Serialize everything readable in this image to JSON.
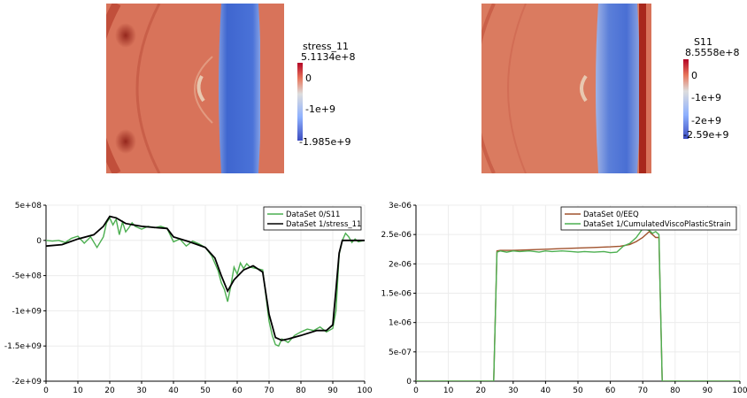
{
  "colors": {
    "field_base": "#d8735a",
    "field_light": "#e3937a",
    "field_dark": "#a8281c",
    "wave_blue": "#4a72d8",
    "wave_blue_light": "#7b98e0",
    "series_green": "#4caf50",
    "series_black": "#000000",
    "series_red": "#a0522d",
    "grid": "#e6e6e6"
  },
  "field_left": {
    "colorbar": {
      "title": "stress_11",
      "max_label": "5.1134e+8",
      "tick_labels": [
        "0",
        "-1e+9"
      ],
      "min_label": "-1.985e+9",
      "range": [
        -1985000000,
        511340000
      ],
      "ticks": [
        0,
        -1000000000
      ]
    }
  },
  "field_right": {
    "colorbar": {
      "title": "S11",
      "max_label": "8.5558e+8",
      "tick_labels": [
        "0",
        "-1e+9",
        "-2e+9"
      ],
      "min_label": "-2.59e+9",
      "range": [
        -2590000000,
        855580000
      ],
      "ticks": [
        0,
        -1000000000,
        -2000000000
      ]
    }
  },
  "chart_data": [
    {
      "type": "line",
      "xlim": [
        0,
        100
      ],
      "ylim": [
        -2000000000,
        500000000
      ],
      "grid": true,
      "legend_placement": "top-right",
      "x_ticks": [
        0,
        10,
        20,
        30,
        40,
        50,
        60,
        70,
        80,
        90,
        100
      ],
      "x_tick_labels": [
        "0",
        "10",
        "20",
        "30",
        "40",
        "50",
        "60",
        "70",
        "80",
        "90",
        "100"
      ],
      "y_ticks": [
        500000000,
        0,
        -500000000,
        -1000000000,
        -1500000000,
        -2000000000
      ],
      "y_tick_labels": [
        "5e+08",
        "0",
        "-5e+08",
        "-1e+09",
        "-1.5e+09",
        "-2e+09"
      ],
      "series": [
        {
          "name": "DataSet 0/S11",
          "color": "#4caf50",
          "x": [
            0,
            2,
            4,
            6,
            8,
            10,
            12,
            14,
            16,
            18,
            19,
            20,
            21,
            22,
            23,
            24,
            25,
            26,
            27,
            28,
            30,
            32,
            34,
            36,
            38,
            40,
            42,
            44,
            46,
            48,
            50,
            52,
            54,
            55,
            56,
            57,
            58,
            59,
            60,
            61,
            62,
            63,
            64,
            66,
            68,
            70,
            71,
            72,
            73,
            74,
            76,
            78,
            80,
            82,
            84,
            86,
            88,
            90,
            91,
            92,
            93,
            94,
            95,
            96,
            97,
            98,
            100
          ],
          "y": [
            0,
            -10000000,
            0,
            -30000000,
            30000000,
            60000000,
            -40000000,
            50000000,
            -100000000,
            50000000,
            250000000,
            320000000,
            220000000,
            300000000,
            80000000,
            260000000,
            120000000,
            180000000,
            250000000,
            200000000,
            160000000,
            200000000,
            180000000,
            200000000,
            170000000,
            -20000000,
            20000000,
            -80000000,
            -10000000,
            -50000000,
            -100000000,
            -220000000,
            -430000000,
            -600000000,
            -700000000,
            -870000000,
            -650000000,
            -380000000,
            -480000000,
            -320000000,
            -400000000,
            -330000000,
            -380000000,
            -400000000,
            -420000000,
            -1150000000,
            -1350000000,
            -1480000000,
            -1500000000,
            -1400000000,
            -1450000000,
            -1350000000,
            -1300000000,
            -1260000000,
            -1280000000,
            -1230000000,
            -1300000000,
            -1250000000,
            -1000000000,
            -200000000,
            0,
            100000000,
            50000000,
            -30000000,
            20000000,
            -20000000,
            0
          ]
        },
        {
          "name": "DataSet 1/stress_11",
          "color": "#000000",
          "x": [
            0,
            5,
            10,
            15,
            18,
            20,
            22,
            25,
            30,
            35,
            38,
            40,
            45,
            50,
            53,
            55,
            57,
            59,
            62,
            65,
            68,
            70,
            72,
            74,
            76,
            80,
            85,
            88,
            90,
            91,
            92,
            93,
            95,
            98,
            100
          ],
          "y": [
            -80000000,
            -60000000,
            20000000,
            80000000,
            200000000,
            340000000,
            320000000,
            240000000,
            200000000,
            180000000,
            170000000,
            50000000,
            -20000000,
            -100000000,
            -250000000,
            -500000000,
            -720000000,
            -560000000,
            -420000000,
            -360000000,
            -450000000,
            -1050000000,
            -1380000000,
            -1420000000,
            -1400000000,
            -1350000000,
            -1280000000,
            -1280000000,
            -1200000000,
            -700000000,
            -180000000,
            0,
            0,
            0,
            0
          ]
        }
      ]
    },
    {
      "type": "line",
      "xlim": [
        0,
        100
      ],
      "ylim": [
        0,
        3e-06
      ],
      "grid": true,
      "legend_placement": "top-right",
      "x_ticks": [
        0,
        10,
        20,
        30,
        40,
        50,
        60,
        70,
        80,
        90,
        100
      ],
      "x_tick_labels": [
        "0",
        "10",
        "20",
        "30",
        "40",
        "50",
        "60",
        "70",
        "80",
        "90",
        "100"
      ],
      "y_ticks": [
        3e-06,
        2.5e-06,
        2e-06,
        1.5e-06,
        1e-06,
        5e-07,
        0
      ],
      "y_tick_labels": [
        "3e-06",
        "2.5e-06",
        "2e-06",
        "1.5e-06",
        "1e-06",
        "5e-07",
        "0"
      ],
      "series": [
        {
          "name": "DataSet 0/EEQ",
          "color": "#a0522d",
          "x": [
            0,
            24,
            25,
            26,
            30,
            35,
            40,
            45,
            50,
            55,
            60,
            63,
            66,
            68,
            70,
            72,
            74,
            75,
            76,
            100
          ],
          "y": [
            0,
            0,
            2.22e-06,
            2.23e-06,
            2.23e-06,
            2.24e-06,
            2.25e-06,
            2.26e-06,
            2.27e-06,
            2.28e-06,
            2.29e-06,
            2.3e-06,
            2.33e-06,
            2.38e-06,
            2.45e-06,
            2.55e-06,
            2.45e-06,
            2.45e-06,
            0,
            0
          ]
        },
        {
          "name": "DataSet 1/CumulatedViscoPlasticStrain",
          "color": "#4caf50",
          "x": [
            0,
            24,
            25,
            26,
            28,
            30,
            32,
            35,
            38,
            40,
            42,
            45,
            48,
            50,
            52,
            55,
            58,
            60,
            62,
            64,
            66,
            68,
            70,
            72,
            73,
            74,
            75,
            76,
            100
          ],
          "y": [
            0,
            0,
            2.2e-06,
            2.22e-06,
            2.2e-06,
            2.22e-06,
            2.21e-06,
            2.22e-06,
            2.2e-06,
            2.22e-06,
            2.21e-06,
            2.22e-06,
            2.21e-06,
            2.2e-06,
            2.21e-06,
            2.2e-06,
            2.21e-06,
            2.19e-06,
            2.2e-06,
            2.3e-06,
            2.35e-06,
            2.45e-06,
            2.6e-06,
            2.57e-06,
            2.52e-06,
            2.55e-06,
            2.5e-06,
            0,
            0
          ]
        }
      ]
    }
  ]
}
